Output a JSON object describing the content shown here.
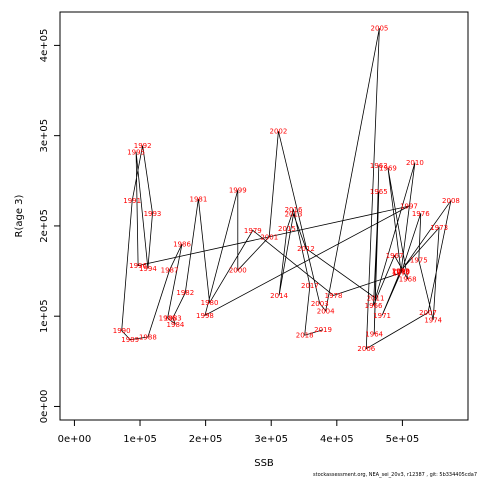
{
  "chart_data": {
    "type": "line",
    "xlabel": "SSB",
    "ylabel": "R(age 3)",
    "xlim": [
      -22000,
      600000
    ],
    "ylim": [
      -15000,
      437000
    ],
    "x_ticks": [
      {
        "value": 0,
        "label": "0e+00"
      },
      {
        "value": 100000,
        "label": "1e+05"
      },
      {
        "value": 200000,
        "label": "2e+05"
      },
      {
        "value": 300000,
        "label": "3e+05"
      },
      {
        "value": 400000,
        "label": "4e+05"
      },
      {
        "value": 500000,
        "label": "5e+05"
      }
    ],
    "y_ticks": [
      {
        "value": 0,
        "label": "0e+00"
      },
      {
        "value": 100000,
        "label": "1e+05"
      },
      {
        "value": 200000,
        "label": "2e+05"
      },
      {
        "value": 300000,
        "label": "3e+05"
      },
      {
        "value": 400000,
        "label": "4e+05"
      }
    ],
    "line_color": "#000000",
    "label_color": "#ff0000",
    "points": [
      {
        "year": "1963",
        "x": 464000,
        "y": 267000
      },
      {
        "year": "1964",
        "x": 457000,
        "y": 80000
      },
      {
        "year": "1965",
        "x": 464000,
        "y": 238000
      },
      {
        "year": "1966",
        "x": 456000,
        "y": 112000
      },
      {
        "year": "1967",
        "x": 488000,
        "y": 167000
      },
      {
        "year": "1968",
        "x": 508000,
        "y": 141000
      },
      {
        "year": "1969",
        "x": 478000,
        "y": 264000
      },
      {
        "year": "1970",
        "x": 498000,
        "y": 149000
      },
      {
        "year": "1971",
        "x": 469000,
        "y": 101000
      },
      {
        "year": "1972",
        "x": 497000,
        "y": 150000
      },
      {
        "year": "1973",
        "x": 556000,
        "y": 198000
      },
      {
        "year": "1974",
        "x": 547000,
        "y": 96000
      },
      {
        "year": "1975",
        "x": 525000,
        "y": 162000
      },
      {
        "year": "1976",
        "x": 528000,
        "y": 214000
      },
      {
        "year": "1977",
        "x": 498000,
        "y": 148000
      },
      {
        "year": "1978",
        "x": 395000,
        "y": 123000
      },
      {
        "year": "1979",
        "x": 272000,
        "y": 195000
      },
      {
        "year": "1980",
        "x": 206000,
        "y": 115000
      },
      {
        "year": "1981",
        "x": 189000,
        "y": 230000
      },
      {
        "year": "1982",
        "x": 169000,
        "y": 126000
      },
      {
        "year": "1983",
        "x": 150000,
        "y": 98000
      },
      {
        "year": "1984",
        "x": 154000,
        "y": 91000
      },
      {
        "year": "1985",
        "x": 142000,
        "y": 98000
      },
      {
        "year": "1986",
        "x": 164000,
        "y": 180000
      },
      {
        "year": "1987",
        "x": 145000,
        "y": 151000
      },
      {
        "year": "1988",
        "x": 112000,
        "y": 77000
      },
      {
        "year": "1989",
        "x": 85000,
        "y": 74000
      },
      {
        "year": "1990",
        "x": 72000,
        "y": 84000
      },
      {
        "year": "1991",
        "x": 88000,
        "y": 228000
      },
      {
        "year": "1992",
        "x": 104000,
        "y": 289000
      },
      {
        "year": "1993",
        "x": 119000,
        "y": 214000
      },
      {
        "year": "1994",
        "x": 112000,
        "y": 153000
      },
      {
        "year": "1995",
        "x": 94000,
        "y": 282000
      },
      {
        "year": "1996",
        "x": 97000,
        "y": 156000
      },
      {
        "year": "1997",
        "x": 510000,
        "y": 222000
      },
      {
        "year": "1998",
        "x": 199000,
        "y": 101000
      },
      {
        "year": "1999",
        "x": 249000,
        "y": 240000
      },
      {
        "year": "2000",
        "x": 249000,
        "y": 151000
      },
      {
        "year": "2001",
        "x": 297000,
        "y": 188000
      },
      {
        "year": "2002",
        "x": 311000,
        "y": 305000
      },
      {
        "year": "2003",
        "x": 374000,
        "y": 114000
      },
      {
        "year": "2004",
        "x": 383000,
        "y": 106000
      },
      {
        "year": "2005",
        "x": 465000,
        "y": 419000
      },
      {
        "year": "2006",
        "x": 445000,
        "y": 64000
      },
      {
        "year": "2007",
        "x": 539000,
        "y": 104000
      },
      {
        "year": "2008",
        "x": 574000,
        "y": 228000
      },
      {
        "year": "2009",
        "x": 498000,
        "y": 150000
      },
      {
        "year": "2010",
        "x": 519000,
        "y": 270000
      },
      {
        "year": "2011",
        "x": 459000,
        "y": 120000
      },
      {
        "year": "2012",
        "x": 353000,
        "y": 175000
      },
      {
        "year": "2013",
        "x": 334000,
        "y": 213000
      },
      {
        "year": "2014",
        "x": 312000,
        "y": 123000
      },
      {
        "year": "2015",
        "x": 324000,
        "y": 197000
      },
      {
        "year": "2016",
        "x": 334000,
        "y": 218000
      },
      {
        "year": "2017",
        "x": 359000,
        "y": 134000
      },
      {
        "year": "2018",
        "x": 351000,
        "y": 79000
      },
      {
        "year": "2019",
        "x": 379000,
        "y": 85000
      }
    ]
  },
  "footnote": "stockassessment.org, NEA_sei_20v3, r12387 , git: 5b334405cda7"
}
